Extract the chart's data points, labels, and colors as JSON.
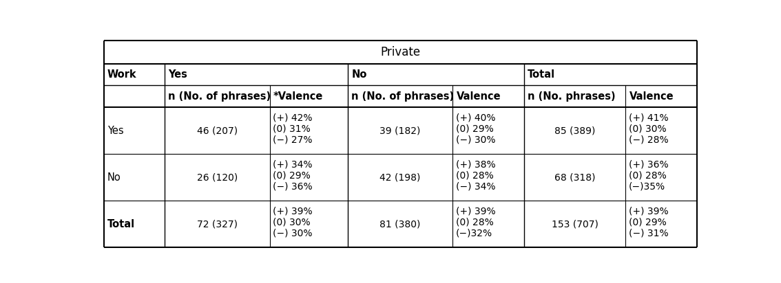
{
  "title": "Private",
  "col_groups": [
    "Yes",
    "No",
    "Total"
  ],
  "row_header": "Work",
  "subheaders": [
    "n (No. of phrases)",
    "*Valence",
    "n (No. of phrases)",
    "Valence",
    "n (No. phrases)",
    "Valence"
  ],
  "rows": [
    {
      "label": "Yes",
      "bold": false,
      "cells": [
        "46 (207)",
        "(+) 42%\n(0) 31%\n(−) 27%",
        "39 (182)",
        "(+) 40%\n(0) 29%\n(−) 30%",
        "85 (389)",
        "(+) 41%\n(0) 30%\n(−) 28%"
      ]
    },
    {
      "label": "No",
      "bold": false,
      "cells": [
        "26 (120)",
        "(+) 34%\n(0) 29%\n(−) 36%",
        "42 (198)",
        "(+) 38%\n(0) 28%\n(−) 34%",
        "68 (318)",
        "(+) 36%\n(0) 28%\n(−)35%"
      ]
    },
    {
      "label": "Total",
      "bold": true,
      "cells": [
        "72 (327)",
        "(+) 39%\n(0) 30%\n(−) 30%",
        "81 (380)",
        "(+) 39%\n(0) 28%\n(−)32%",
        "153 (707)",
        "(+) 39%\n(0) 29%\n(−) 31%"
      ]
    }
  ],
  "bg_color": "#ffffff",
  "text_color": "#000000",
  "line_color": "#000000",
  "font_size": 10.5,
  "title_font_size": 12
}
